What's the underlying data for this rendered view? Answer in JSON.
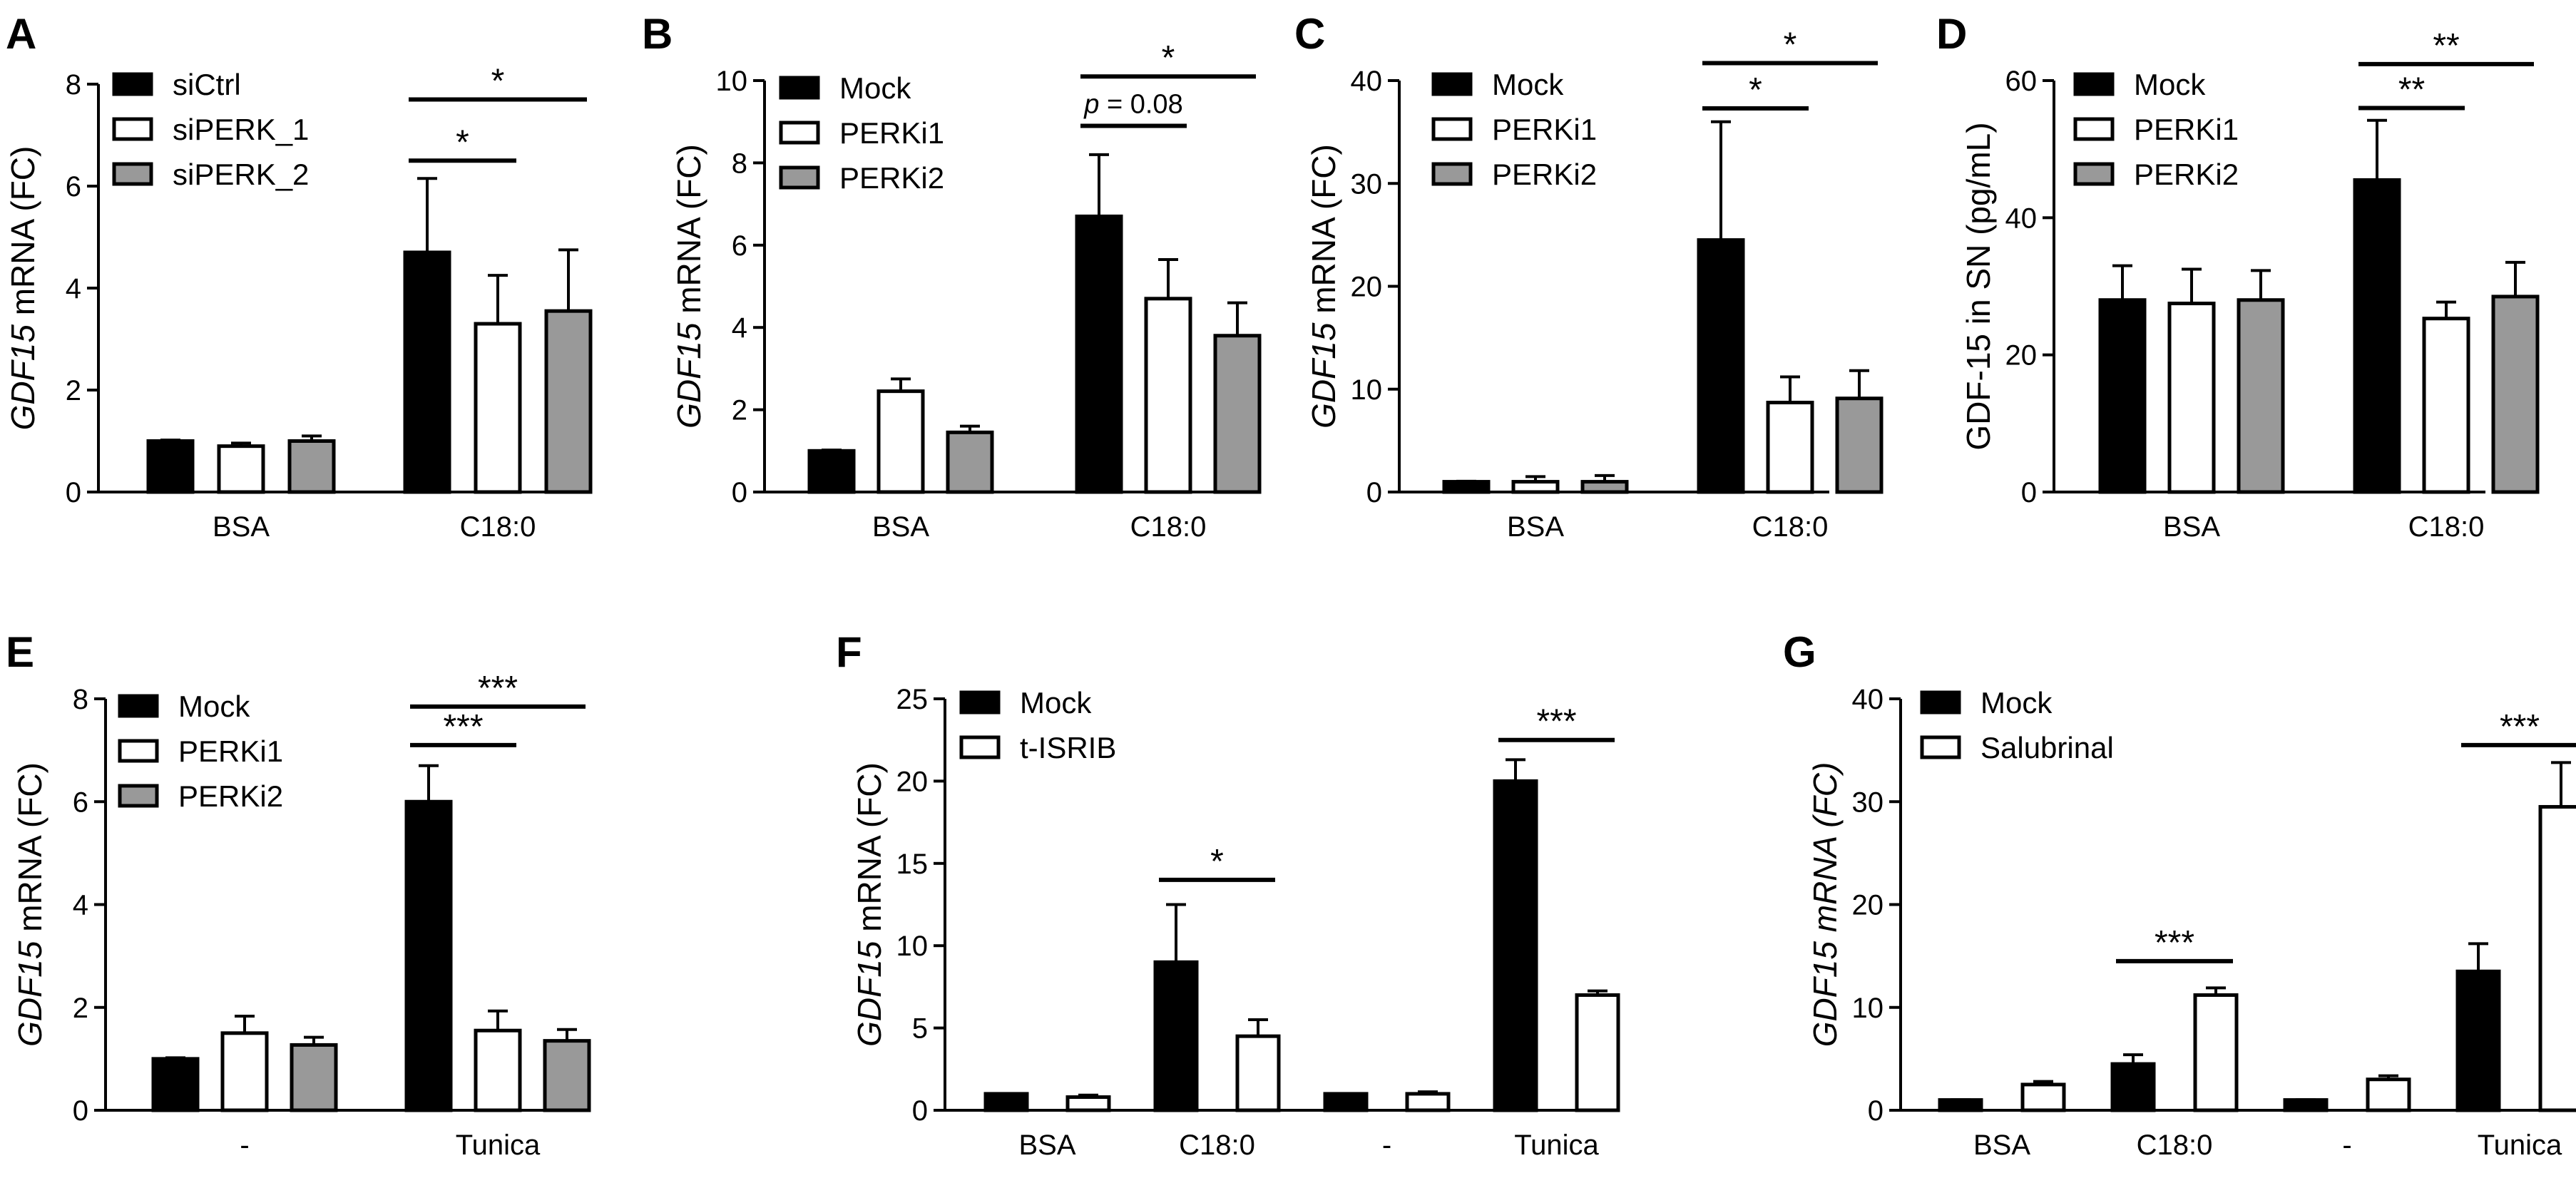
{
  "figure": {
    "colors": {
      "black": "#000000",
      "white": "#ffffff",
      "gray": "#999999"
    },
    "ylabel_gene": "GDF15",
    "ylabel_suffix": "mRNA (FC)"
  },
  "chart_data": [
    {
      "id": "A",
      "type": "bar",
      "title": "",
      "ylabel_italic": "GDF15",
      "ylabel_plain": " mRNA (FC)",
      "ylabel_all_italic": false,
      "ylim": [
        0,
        8
      ],
      "yticks": [
        0,
        2,
        4,
        6,
        8
      ],
      "categories": [
        "BSA",
        "C18:0"
      ],
      "series": [
        {
          "name": "siCtrl",
          "color": "black",
          "values": [
            1.0,
            4.7
          ],
          "errors": [
            0.02,
            1.45
          ]
        },
        {
          "name": "siPERK_1",
          "color": "white",
          "values": [
            0.9,
            3.3
          ],
          "errors": [
            0.06,
            0.95
          ]
        },
        {
          "name": "siPERK_2",
          "color": "gray",
          "values": [
            1.0,
            3.55
          ],
          "errors": [
            0.1,
            1.2
          ]
        }
      ],
      "sig": [
        {
          "label": "*",
          "cat": 1,
          "from": 0,
          "to": 1,
          "y": 6.5,
          "italic": false
        },
        {
          "label": "*",
          "cat": 1,
          "from": 0,
          "to": 2,
          "y": 7.7,
          "italic": false
        }
      ]
    },
    {
      "id": "B",
      "type": "bar",
      "title": "",
      "ylabel_italic": "GDF15",
      "ylabel_plain": " mRNA (FC)",
      "ylabel_all_italic": false,
      "ylim": [
        0,
        10
      ],
      "yticks": [
        0,
        2,
        4,
        6,
        8,
        10
      ],
      "categories": [
        "BSA",
        "C18:0"
      ],
      "series": [
        {
          "name": "Mock",
          "color": "black",
          "values": [
            1.0,
            6.7
          ],
          "errors": [
            0.02,
            1.5
          ]
        },
        {
          "name": "PERKi1",
          "color": "white",
          "values": [
            2.45,
            4.7
          ],
          "errors": [
            0.3,
            0.95
          ]
        },
        {
          "name": "PERKi2",
          "color": "gray",
          "values": [
            1.45,
            3.8
          ],
          "errors": [
            0.15,
            0.8
          ]
        }
      ],
      "sig": [
        {
          "label": "p = 0.08",
          "cat": 1,
          "from": 0,
          "to": 1,
          "y": 8.9,
          "italic": true
        },
        {
          "label": "*",
          "cat": 1,
          "from": 0,
          "to": 2,
          "y": 10.1,
          "italic": false
        }
      ]
    },
    {
      "id": "C",
      "type": "bar",
      "title": "",
      "ylabel_italic": "GDF15",
      "ylabel_plain": " mRNA (FC)",
      "ylabel_all_italic": false,
      "ylim": [
        0,
        40
      ],
      "yticks": [
        0,
        10,
        20,
        30,
        40
      ],
      "categories": [
        "BSA",
        "C18:0"
      ],
      "series": [
        {
          "name": "Mock",
          "color": "black",
          "values": [
            1.0,
            24.5
          ],
          "errors": [
            0.05,
            11.5
          ]
        },
        {
          "name": "PERKi1",
          "color": "white",
          "values": [
            1.0,
            8.7
          ],
          "errors": [
            0.5,
            2.5
          ]
        },
        {
          "name": "PERKi2",
          "color": "gray",
          "values": [
            1.0,
            9.1
          ],
          "errors": [
            0.6,
            2.7
          ]
        }
      ],
      "sig": [
        {
          "label": "*",
          "cat": 1,
          "from": 0,
          "to": 1,
          "y": 37.3,
          "italic": false
        },
        {
          "label": "*",
          "cat": 1,
          "from": 0,
          "to": 2,
          "y": 41.7,
          "italic": false
        }
      ]
    },
    {
      "id": "D",
      "type": "bar",
      "title": "",
      "ylabel_italic": "",
      "ylabel_plain": "GDF-15 in SN (pg/mL)",
      "ylabel_all_italic": false,
      "ylim": [
        0,
        60
      ],
      "yticks": [
        0,
        20,
        40,
        60
      ],
      "categories": [
        "BSA",
        "C18:0"
      ],
      "series": [
        {
          "name": "Mock",
          "color": "black",
          "values": [
            28,
            45.5
          ],
          "errors": [
            5,
            8.7
          ]
        },
        {
          "name": "PERKi1",
          "color": "white",
          "values": [
            27.5,
            25.3
          ],
          "errors": [
            5,
            2.4
          ]
        },
        {
          "name": "PERKi2",
          "color": "gray",
          "values": [
            28,
            28.5
          ],
          "errors": [
            4.3,
            5
          ]
        }
      ],
      "sig": [
        {
          "label": "**",
          "cat": 1,
          "from": 0,
          "to": 1,
          "y": 56,
          "italic": false
        },
        {
          "label": "**",
          "cat": 1,
          "from": 0,
          "to": 2,
          "y": 62.4,
          "italic": false
        }
      ]
    },
    {
      "id": "E",
      "type": "bar",
      "title": "",
      "ylabel_italic": "GDF15",
      "ylabel_plain": " mRNA (FC)",
      "ylabel_all_italic": false,
      "ylim": [
        0,
        8
      ],
      "yticks": [
        0,
        2,
        4,
        6,
        8
      ],
      "categories": [
        "-",
        "Tunica"
      ],
      "series": [
        {
          "name": "Mock",
          "color": "black",
          "values": [
            1.0,
            6.0
          ],
          "errors": [
            0.02,
            0.7
          ]
        },
        {
          "name": "PERKi1",
          "color": "white",
          "values": [
            1.5,
            1.55
          ],
          "errors": [
            0.33,
            0.38
          ]
        },
        {
          "name": "PERKi2",
          "color": "gray",
          "values": [
            1.27,
            1.35
          ],
          "errors": [
            0.15,
            0.22
          ]
        }
      ],
      "sig": [
        {
          "label": "***",
          "cat": 1,
          "from": 0,
          "to": 1,
          "y": 7.1,
          "italic": false
        },
        {
          "label": "***",
          "cat": 1,
          "from": 0,
          "to": 2,
          "y": 7.85,
          "italic": false
        }
      ]
    },
    {
      "id": "F",
      "type": "bar",
      "title": "",
      "ylabel_italic": "GDF15",
      "ylabel_plain": " mRNA (FC)",
      "ylabel_all_italic": false,
      "ylim": [
        0,
        25
      ],
      "yticks": [
        0,
        5,
        10,
        15,
        20,
        25
      ],
      "categories": [
        "BSA",
        "C18:0",
        "-",
        "Tunica"
      ],
      "series": [
        {
          "name": "Mock",
          "color": "black",
          "values": [
            1.0,
            9.0,
            1.0,
            20.0
          ],
          "errors": [
            0.02,
            3.5,
            0.02,
            1.3
          ]
        },
        {
          "name": "t-ISRIB",
          "color": "white",
          "values": [
            0.8,
            4.5,
            1.0,
            7.0
          ],
          "errors": [
            0.12,
            1.0,
            0.12,
            0.25
          ]
        }
      ],
      "sig": [
        {
          "label": "*",
          "cat": 1,
          "from": 0,
          "to": 1,
          "y": 14.0,
          "italic": false
        },
        {
          "label": "***",
          "cat": 3,
          "from": 0,
          "to": 1,
          "y": 22.5,
          "italic": false
        }
      ]
    },
    {
      "id": "G",
      "type": "bar",
      "title": "",
      "ylabel_italic": "GDF15 mRNA (FC)",
      "ylabel_plain": "",
      "ylabel_all_italic": true,
      "ylim": [
        0,
        40
      ],
      "yticks": [
        0,
        10,
        20,
        30,
        40
      ],
      "categories": [
        "BSA",
        "C18:0",
        "-",
        "Tunica"
      ],
      "series": [
        {
          "name": "Mock",
          "color": "black",
          "values": [
            1.0,
            4.5,
            1.0,
            13.5
          ],
          "errors": [
            0.02,
            0.9,
            0.02,
            2.7
          ]
        },
        {
          "name": "Salubrinal",
          "color": "white",
          "values": [
            2.5,
            11.2,
            3.0,
            29.5
          ],
          "errors": [
            0.3,
            0.7,
            0.35,
            4.3
          ]
        }
      ],
      "sig": [
        {
          "label": "***",
          "cat": 1,
          "from": 0,
          "to": 1,
          "y": 14.5,
          "italic": false
        },
        {
          "label": "***",
          "cat": 3,
          "from": 0,
          "to": 1,
          "y": 35.5,
          "italic": false
        }
      ]
    }
  ]
}
